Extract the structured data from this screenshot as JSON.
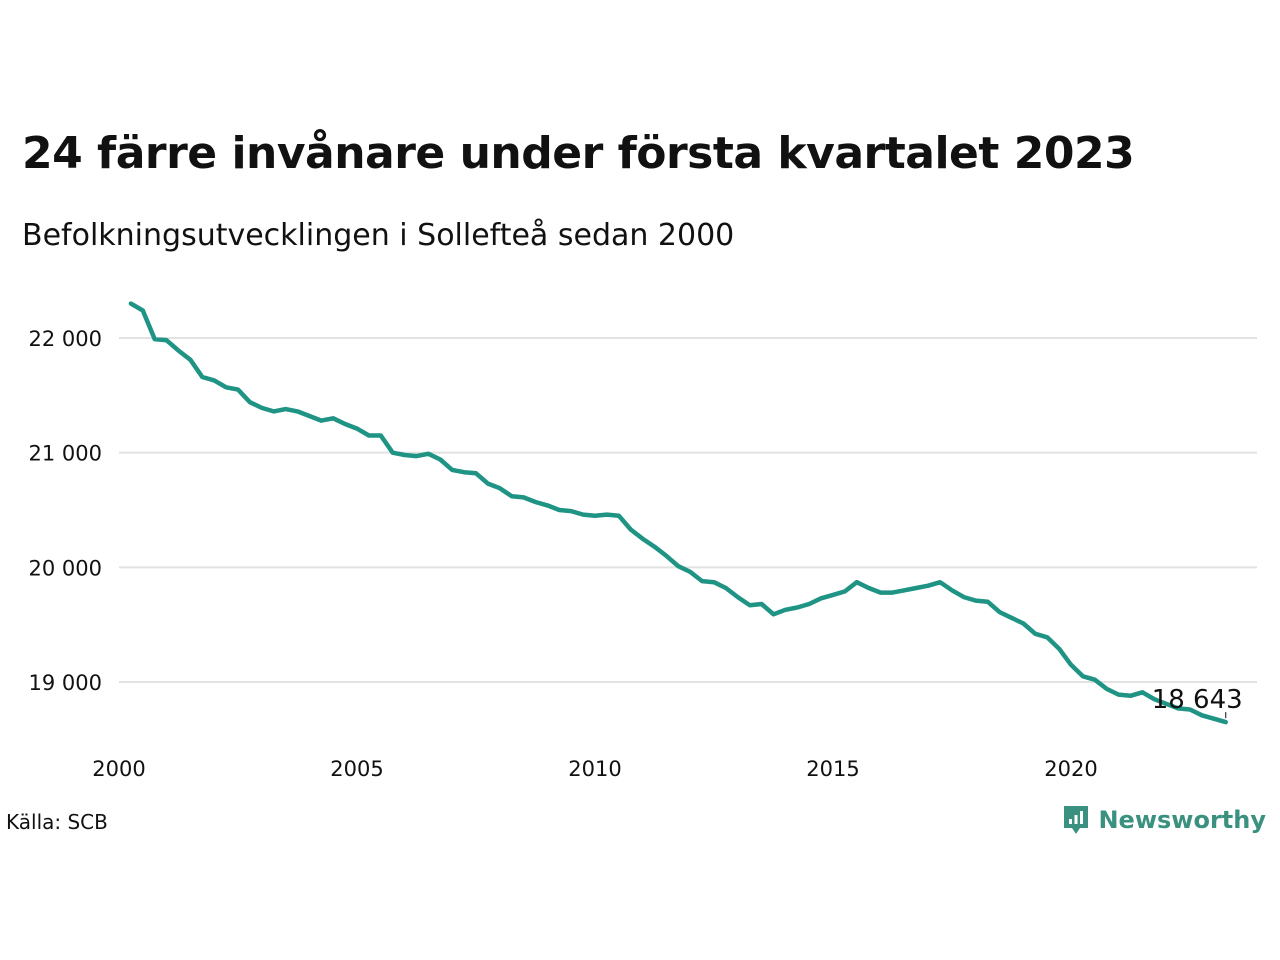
{
  "title": "24 färre invånare under första kvartalet 2023",
  "subtitle": "Befolkningsutvecklingen i Sollefteå sedan 2000",
  "source": "Källa: SCB",
  "brand": {
    "name": "Newsworthy",
    "color": "#3a9180",
    "icon": "newsworthy-chart-icon"
  },
  "colors": {
    "line": "#1f9485",
    "grid": "#e2e2e2",
    "text": "#111111"
  },
  "chart_data": {
    "type": "line",
    "title": "24 färre invånare under första kvartalet 2023",
    "subtitle": "Befolkningsutvecklingen i Sollefteå sedan 2000",
    "xlabel": "",
    "ylabel": "",
    "xlim": [
      2000,
      2023.25
    ],
    "ylim": [
      18500,
      22350
    ],
    "grid": true,
    "x_ticks": [
      2000,
      2005,
      2010,
      2015,
      2020
    ],
    "x_tick_labels": [
      "2000",
      "2005",
      "2010",
      "2015",
      "2020"
    ],
    "y_ticks": [
      19000,
      20000,
      21000,
      22000
    ],
    "y_tick_labels": [
      "19 000",
      "20 000",
      "21 000",
      "22 000"
    ],
    "end_label": "18 643",
    "series": [
      {
        "x": [
          2000.25,
          2000.5,
          2000.75,
          2001,
          2001.25,
          2001.5,
          2001.75,
          2002,
          2002.25,
          2002.5,
          2002.75,
          2003,
          2003.25,
          2003.5,
          2003.75,
          2004,
          2004.25,
          2004.5,
          2004.75,
          2005,
          2005.25,
          2005.5,
          2005.75,
          2006,
          2006.25,
          2006.5,
          2006.75,
          2007,
          2007.25,
          2007.5,
          2007.75,
          2008,
          2008.25,
          2008.5,
          2008.75,
          2009,
          2009.25,
          2009.5,
          2009.75,
          2010,
          2010.25,
          2010.5,
          2010.75,
          2011,
          2011.25,
          2011.5,
          2011.75,
          2012,
          2012.25,
          2012.5,
          2012.75,
          2013,
          2013.25,
          2013.5,
          2013.75,
          2014,
          2014.25,
          2014.5,
          2014.75,
          2015,
          2015.25,
          2015.5,
          2015.75,
          2016,
          2016.25,
          2016.5,
          2016.75,
          2017,
          2017.25,
          2017.5,
          2017.75,
          2018,
          2018.25,
          2018.5,
          2018.75,
          2019,
          2019.25,
          2019.5,
          2019.75,
          2020,
          2020.25,
          2020.5,
          2020.75,
          2021,
          2021.25,
          2021.5,
          2021.75,
          2022,
          2022.25,
          2022.5,
          2022.75,
          2023,
          2023.25
        ],
        "values": [
          22300,
          22240,
          21990,
          21980,
          21890,
          21810,
          21660,
          21630,
          21570,
          21550,
          21440,
          21390,
          21360,
          21380,
          21360,
          21320,
          21280,
          21300,
          21250,
          21210,
          21150,
          21150,
          21000,
          20980,
          20970,
          20990,
          20940,
          20850,
          20830,
          20820,
          20730,
          20690,
          20620,
          20610,
          20570,
          20540,
          20500,
          20490,
          20460,
          20450,
          20460,
          20450,
          20330,
          20250,
          20180,
          20100,
          20010,
          19960,
          19880,
          19870,
          19820,
          19740,
          19670,
          19680,
          19590,
          19630,
          19650,
          19680,
          19730,
          19760,
          19790,
          19870,
          19820,
          19780,
          19780,
          19800,
          19820,
          19840,
          19870,
          19800,
          19740,
          19710,
          19700,
          19610,
          19560,
          19510,
          19420,
          19390,
          19290,
          19150,
          19050,
          19020,
          18940,
          18890,
          18880,
          18910,
          18850,
          18810,
          18770,
          18760,
          18710,
          18680,
          18650
        ]
      }
    ]
  }
}
